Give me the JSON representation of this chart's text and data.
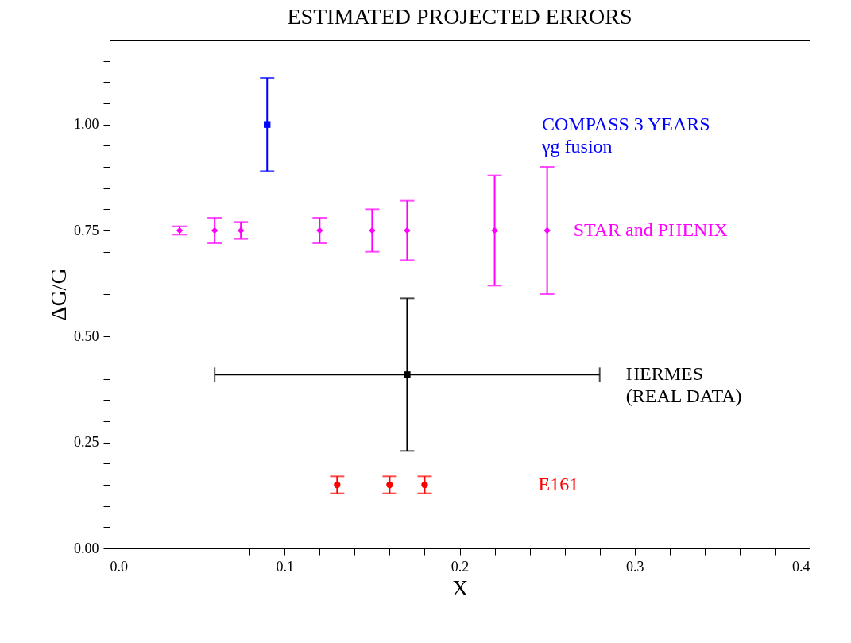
{
  "chart_data": {
    "type": "scatter",
    "title": "ESTIMATED PROJECTED ERRORS",
    "xlabel": "X",
    "ylabel": "ΔG/G",
    "xlim": [
      0,
      0.4
    ],
    "ylim": [
      0,
      1.2
    ],
    "xticks": [
      {
        "value": 0,
        "label": "0.0"
      },
      {
        "value": 0.02,
        "label": null
      },
      {
        "value": 0.04,
        "label": null
      },
      {
        "value": 0.06,
        "label": null
      },
      {
        "value": 0.08,
        "label": null
      },
      0.1,
      {
        "value": 0.12,
        "label": null
      },
      {
        "value": 0.14,
        "label": null
      },
      {
        "value": 0.16,
        "label": null
      },
      {
        "value": 0.18,
        "label": null
      },
      0.2,
      {
        "value": 0.22,
        "label": null
      },
      {
        "value": 0.24,
        "label": null
      },
      {
        "value": 0.26,
        "label": null
      },
      {
        "value": 0.28,
        "label": null
      },
      0.3,
      {
        "value": 0.32,
        "label": null
      },
      {
        "value": 0.34,
        "label": null
      },
      {
        "value": 0.36,
        "label": null
      },
      {
        "value": 0.38,
        "label": null
      },
      0.4
    ],
    "yticks": [
      {
        "value": 0,
        "label": "0.00"
      },
      {
        "value": 0.05,
        "label": null
      },
      {
        "value": 0.1,
        "label": null
      },
      {
        "value": 0.15,
        "label": null
      },
      {
        "value": 0.2,
        "label": null
      },
      0.25,
      {
        "value": 0.3,
        "label": null
      },
      {
        "value": 0.35,
        "label": null
      },
      {
        "value": 0.4,
        "label": null
      },
      {
        "value": 0.45,
        "label": null
      },
      {
        "value": 0.5,
        "label": "0.50"
      },
      {
        "value": 0.55,
        "label": null
      },
      {
        "value": 0.6,
        "label": null
      },
      {
        "value": 0.65,
        "label": null
      },
      {
        "value": 0.7,
        "label": null
      },
      0.75,
      {
        "value": 0.8,
        "label": null
      },
      {
        "value": 0.85,
        "label": null
      },
      {
        "value": 0.9,
        "label": null
      },
      {
        "value": 0.95,
        "label": null
      },
      {
        "value": 1,
        "label": "1.00"
      },
      {
        "value": 1.05,
        "label": null
      },
      {
        "value": 1.1,
        "label": null
      },
      {
        "value": 1.15,
        "label": null
      }
    ],
    "grid": false,
    "series": [
      {
        "name": "COMPASS 3 YEARS\nγg fusion",
        "color": "#0000ff",
        "marker": "square",
        "x": [
          0.09
        ],
        "values": [
          1.0
        ],
        "errors": [
          0.11
        ]
      },
      {
        "name": "STAR and PHENIX",
        "color": "#ff00ff",
        "marker": "diamond",
        "x": [
          0.04,
          0.06,
          0.075,
          0.12,
          0.15,
          0.17,
          0.22,
          0.25
        ],
        "values": [
          0.75,
          0.75,
          0.75,
          0.75,
          0.75,
          0.75,
          0.75,
          0.75
        ],
        "errors": [
          0.01,
          0.03,
          0.02,
          0.03,
          0.05,
          0.07,
          0.13,
          0.15
        ]
      },
      {
        "name": "HERMES\n(REAL DATA)",
        "color": "#000000",
        "marker": "square",
        "x": [
          0.17
        ],
        "values": [
          0.41
        ],
        "errors": [
          0.18
        ],
        "xerrors": [
          0.11
        ]
      },
      {
        "name": "E161",
        "color": "#ff0000",
        "marker": "circle",
        "x": [
          0.13,
          0.16,
          0.18
        ],
        "values": [
          0.15,
          0.15,
          0.15
        ],
        "errors": [
          0.02,
          0.02,
          0.02
        ]
      }
    ]
  }
}
